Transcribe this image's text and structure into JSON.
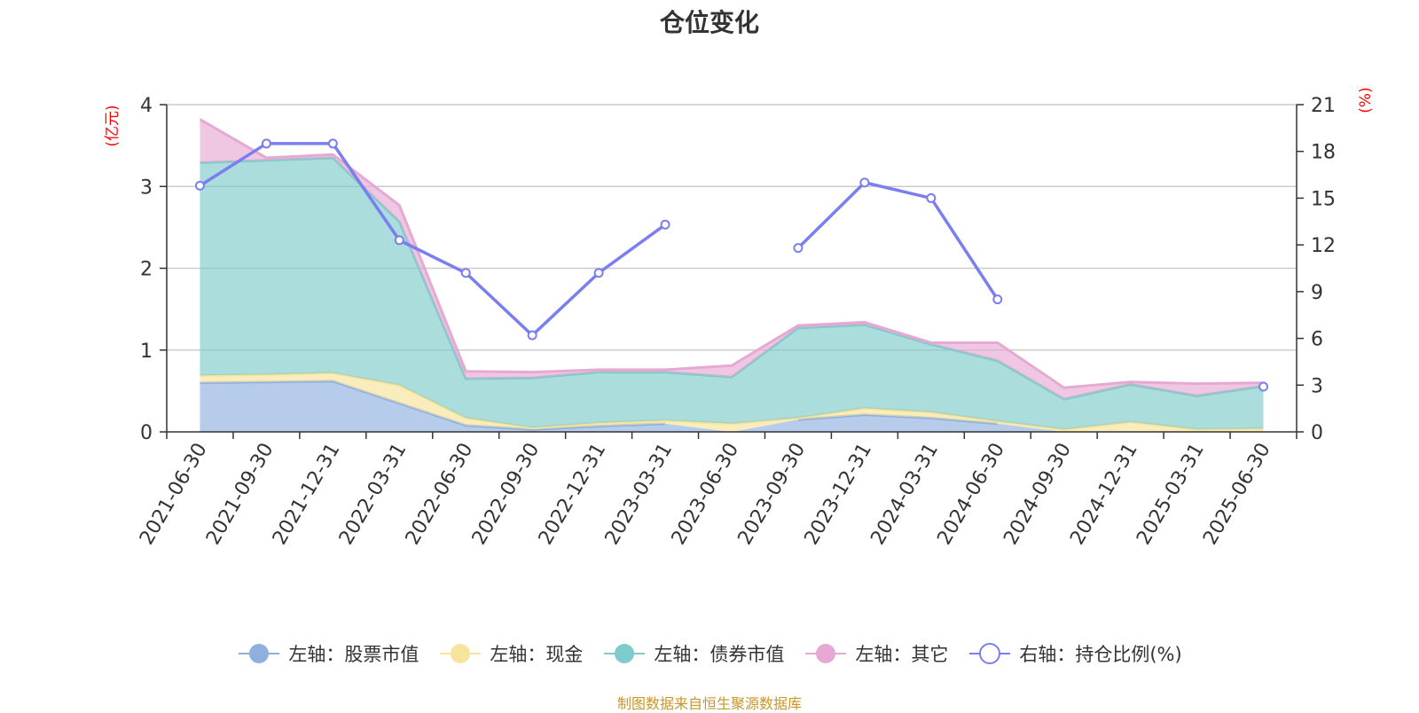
{
  "title": "仓位变化",
  "source": "制图数据来自恒生聚源数据库",
  "colors": {
    "stock": "#8fb0de",
    "cash": "#f7e39a",
    "bond": "#7ecbcb",
    "other": "#e6a9d4",
    "ratio": "#7b7ef0"
  },
  "legend": [
    {
      "key": "stock",
      "label": "左轴：股票市值",
      "kind": "area"
    },
    {
      "key": "cash",
      "label": "左轴：现金",
      "kind": "area"
    },
    {
      "key": "bond",
      "label": "左轴：债券市值",
      "kind": "area"
    },
    {
      "key": "other",
      "label": "左轴：其它",
      "kind": "area"
    },
    {
      "key": "ratio",
      "label": "右轴：持仓比例(%)",
      "kind": "line"
    }
  ],
  "chart_data": {
    "type": "area",
    "title": "仓位变化",
    "categories": [
      "2021-06-30",
      "2021-09-30",
      "2021-12-31",
      "2022-03-31",
      "2022-06-30",
      "2022-09-30",
      "2022-12-31",
      "2023-03-31",
      "2023-06-30",
      "2023-09-30",
      "2023-12-31",
      "2024-03-31",
      "2024-06-30",
      "2024-09-30",
      "2024-12-31",
      "2025-03-31",
      "2025-06-30"
    ],
    "y_left": {
      "unit": "(亿元)",
      "ticks": [
        0,
        1,
        2,
        3,
        4
      ],
      "range": [
        0,
        4
      ]
    },
    "y_right": {
      "unit": "(%)",
      "ticks": [
        0,
        3,
        6,
        9,
        12,
        15,
        18,
        21
      ],
      "range": [
        0,
        21
      ]
    },
    "grid": true,
    "legend_position": "bottom",
    "series": [
      {
        "name": "左轴：股票市值",
        "axis": "left",
        "stacked": true,
        "values": [
          0.6,
          0.61,
          0.62,
          0.35,
          0.08,
          0.03,
          0.07,
          0.1,
          null,
          0.15,
          0.21,
          0.17,
          0.1,
          null,
          null,
          null,
          null
        ]
      },
      {
        "name": "左轴：现金",
        "axis": "left",
        "stacked": true,
        "values": [
          0.09,
          0.09,
          0.1,
          0.22,
          0.09,
          0.02,
          0.04,
          0.04,
          0.1,
          0.02,
          0.08,
          0.07,
          0.03,
          0.03,
          0.12,
          0.03,
          0.04
        ]
      },
      {
        "name": "左轴：债券市值",
        "axis": "left",
        "stacked": true,
        "values": [
          2.6,
          2.62,
          2.63,
          2.0,
          0.48,
          0.61,
          0.62,
          0.59,
          0.57,
          1.1,
          1.02,
          0.83,
          0.74,
          0.37,
          0.46,
          0.41,
          0.52
        ]
      },
      {
        "name": "左轴：其它",
        "axis": "left",
        "stacked": true,
        "values": [
          0.53,
          0.03,
          0.04,
          0.2,
          0.09,
          0.07,
          0.03,
          0.03,
          0.14,
          0.03,
          0.03,
          0.02,
          0.22,
          0.14,
          0.03,
          0.15,
          0.04
        ]
      },
      {
        "name": "右轴：持仓比例(%)",
        "axis": "right",
        "type": "line",
        "values": [
          15.8,
          18.5,
          18.5,
          12.3,
          10.2,
          6.2,
          10.2,
          13.3,
          null,
          11.8,
          16.0,
          15.0,
          8.5,
          null,
          null,
          null,
          2.9
        ]
      }
    ]
  }
}
